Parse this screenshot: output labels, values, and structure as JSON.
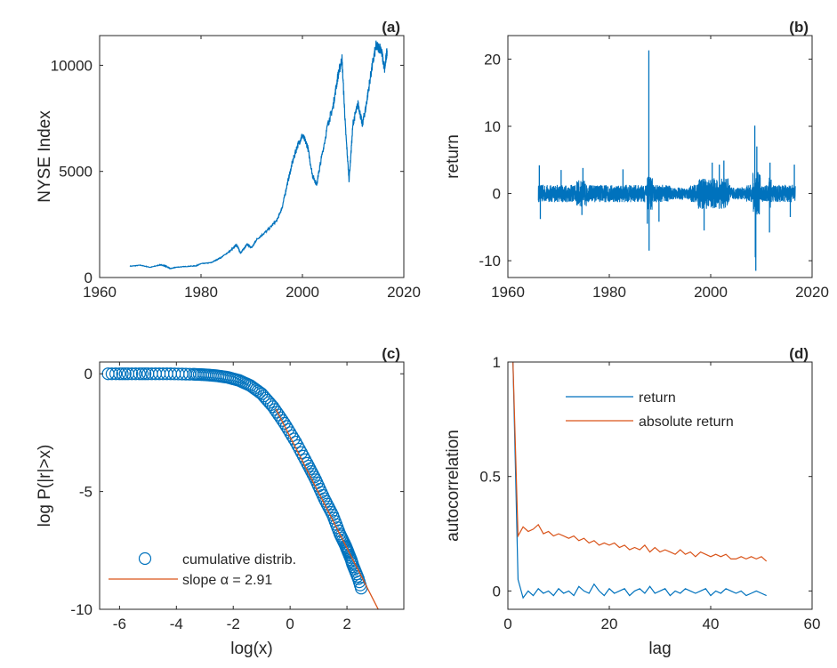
{
  "colors": {
    "blue": "#0072BD",
    "orange": "#D95319",
    "axis": "#262626"
  },
  "chart_data": [
    {
      "panel": "(a)",
      "type": "line",
      "xlabel": "",
      "ylabel": "NYSE Index",
      "xlim": [
        1960,
        2020
      ],
      "ylim": [
        0,
        11400
      ],
      "xticks": [
        1960,
        1980,
        2000,
        2020
      ],
      "yticks": [
        0,
        5000,
        10000
      ],
      "series": [
        {
          "x": [
            1966,
            1968,
            1970,
            1972,
            1973,
            1974,
            1975,
            1977,
            1979,
            1980,
            1982,
            1984,
            1986,
            1987,
            1987.8,
            1989,
            1990,
            1991,
            1993,
            1995,
            1996,
            1997,
            1998,
            1999,
            2000,
            2001,
            2002,
            2002.8,
            2003.5,
            2005,
            2006,
            2007,
            2007.8,
            2008.5,
            2009.2,
            2010,
            2011,
            2011.8,
            2012.5,
            2013.5,
            2014.5,
            2015.5,
            2016.2,
            2016.7
          ],
          "y": [
            530,
            580,
            480,
            600,
            540,
            420,
            480,
            520,
            550,
            650,
            700,
            950,
            1300,
            1550,
            1150,
            1550,
            1400,
            1800,
            2200,
            2700,
            3300,
            4400,
            5400,
            6200,
            6700,
            6200,
            4800,
            4400,
            5300,
            7200,
            8000,
            9500,
            10300,
            7000,
            4600,
            7300,
            8200,
            7200,
            8000,
            9600,
            10900,
            10800,
            9800,
            10700
          ]
        }
      ]
    },
    {
      "panel": "(b)",
      "type": "line",
      "xlabel": "",
      "ylabel": "return",
      "xlim": [
        1960,
        2020
      ],
      "ylim": [
        -12.5,
        23.5
      ],
      "xticks": [
        1960,
        1980,
        2000,
        2020
      ],
      "yticks": [
        -10,
        0,
        10,
        20
      ],
      "x_start": 1966,
      "x_end": 2016.7,
      "spikes": [
        {
          "x": 1966.2,
          "y": 4.2
        },
        {
          "x": 1966.4,
          "y": -3.8
        },
        {
          "x": 1970.5,
          "y": 3.5
        },
        {
          "x": 1974.6,
          "y": -3.2
        },
        {
          "x": 1974.8,
          "y": 3.8
        },
        {
          "x": 1982.7,
          "y": 3.6
        },
        {
          "x": 1987.5,
          "y": -4.5
        },
        {
          "x": 1987.8,
          "y": 21.3
        },
        {
          "x": 1987.85,
          "y": -8.5
        },
        {
          "x": 1989.8,
          "y": -4.2
        },
        {
          "x": 1998.7,
          "y": -5.5
        },
        {
          "x": 2000.3,
          "y": 4.6
        },
        {
          "x": 2001.7,
          "y": 4.3
        },
        {
          "x": 2002.6,
          "y": 4.9
        },
        {
          "x": 2008.7,
          "y": 10.1
        },
        {
          "x": 2008.8,
          "y": -9.5
        },
        {
          "x": 2008.9,
          "y": -11.5
        },
        {
          "x": 2009.1,
          "y": 7.0
        },
        {
          "x": 2011.6,
          "y": -5.8
        },
        {
          "x": 2011.7,
          "y": 4.6
        },
        {
          "x": 2015.7,
          "y": -3.5
        },
        {
          "x": 2016.5,
          "y": 4.3
        }
      ]
    },
    {
      "panel": "(c)",
      "type": "scatter",
      "xlabel": "log(x)",
      "ylabel": "log P(|r|>x)",
      "xlim": [
        -6.7,
        4
      ],
      "ylim": [
        -10,
        0.5
      ],
      "xticks": [
        -6,
        -4,
        -2,
        0,
        2
      ],
      "yticks": [
        -10,
        -5,
        0
      ],
      "series": [
        {
          "name": "cumulative distrib.",
          "x": [
            -6.4,
            -6.0,
            -5.7,
            -5.3,
            -5.0,
            -4.6,
            -4.2,
            -3.8,
            -3.4,
            -3.0,
            -2.6,
            -2.2,
            -1.8,
            -1.4,
            -1.0,
            -0.6,
            -0.2,
            0.2,
            0.6,
            0.9,
            1.2,
            1.5,
            1.75,
            1.95,
            2.05,
            2.15,
            2.2,
            2.3,
            2.4,
            2.5
          ],
          "y": [
            0.0,
            0.0,
            0.0,
            0.0,
            0.0,
            0.0,
            0.0,
            -0.01,
            -0.02,
            -0.04,
            -0.08,
            -0.15,
            -0.28,
            -0.5,
            -0.85,
            -1.4,
            -2.1,
            -2.9,
            -3.8,
            -4.5,
            -5.3,
            -6.0,
            -6.8,
            -7.3,
            -7.6,
            -7.9,
            -8.1,
            -8.4,
            -8.7,
            -9.1
          ]
        },
        {
          "name": "slope α = 2.91",
          "x": [
            -0.5,
            3.1
          ],
          "y": [
            -1.5,
            -10
          ]
        }
      ]
    },
    {
      "panel": "(d)",
      "type": "line",
      "xlabel": "lag",
      "ylabel": "autocorrelation",
      "xlim": [
        0,
        60
      ],
      "ylim": [
        -0.08,
        1.0
      ],
      "xticks": [
        0,
        20,
        40,
        60
      ],
      "yticks": [
        0,
        0.5,
        1
      ],
      "yticklabels": [
        "0",
        "0.5",
        "1"
      ],
      "series": [
        {
          "name": "return",
          "x": [
            1,
            2,
            3,
            4,
            5,
            6,
            7,
            8,
            9,
            10,
            11,
            12,
            13,
            14,
            15,
            16,
            17,
            18,
            19,
            20,
            21,
            22,
            23,
            24,
            25,
            26,
            27,
            28,
            29,
            30,
            31,
            32,
            33,
            34,
            35,
            36,
            37,
            38,
            39,
            40,
            41,
            42,
            43,
            44,
            45,
            46,
            47,
            48,
            49,
            50,
            51
          ],
          "y": [
            1.0,
            0.05,
            -0.03,
            0.0,
            -0.02,
            0.01,
            -0.01,
            0.0,
            -0.02,
            0.01,
            -0.01,
            0.0,
            -0.02,
            0.02,
            0.0,
            -0.01,
            0.03,
            0.0,
            -0.02,
            0.01,
            -0.01,
            0.0,
            0.01,
            -0.02,
            0.0,
            0.01,
            -0.01,
            0.02,
            -0.01,
            0.0,
            0.01,
            -0.02,
            0.0,
            -0.01,
            0.01,
            0.0,
            -0.01,
            0.0,
            0.01,
            -0.02,
            0.0,
            -0.01,
            0.01,
            0.0,
            -0.01,
            0.0,
            -0.02,
            -0.01,
            0.0,
            -0.01,
            -0.02
          ]
        },
        {
          "name": "absolute return",
          "x": [
            1,
            2,
            3,
            4,
            5,
            6,
            7,
            8,
            9,
            10,
            11,
            12,
            13,
            14,
            15,
            16,
            17,
            18,
            19,
            20,
            21,
            22,
            23,
            24,
            25,
            26,
            27,
            28,
            29,
            30,
            31,
            32,
            33,
            34,
            35,
            36,
            37,
            38,
            39,
            40,
            41,
            42,
            43,
            44,
            45,
            46,
            47,
            48,
            49,
            50,
            51
          ],
          "y": [
            1.0,
            0.24,
            0.28,
            0.26,
            0.27,
            0.29,
            0.25,
            0.26,
            0.24,
            0.25,
            0.24,
            0.23,
            0.24,
            0.22,
            0.23,
            0.21,
            0.22,
            0.2,
            0.21,
            0.2,
            0.21,
            0.19,
            0.2,
            0.18,
            0.19,
            0.18,
            0.2,
            0.17,
            0.19,
            0.17,
            0.18,
            0.17,
            0.16,
            0.18,
            0.16,
            0.17,
            0.15,
            0.17,
            0.16,
            0.15,
            0.16,
            0.15,
            0.16,
            0.14,
            0.14,
            0.15,
            0.14,
            0.15,
            0.14,
            0.15,
            0.13
          ]
        }
      ]
    }
  ]
}
